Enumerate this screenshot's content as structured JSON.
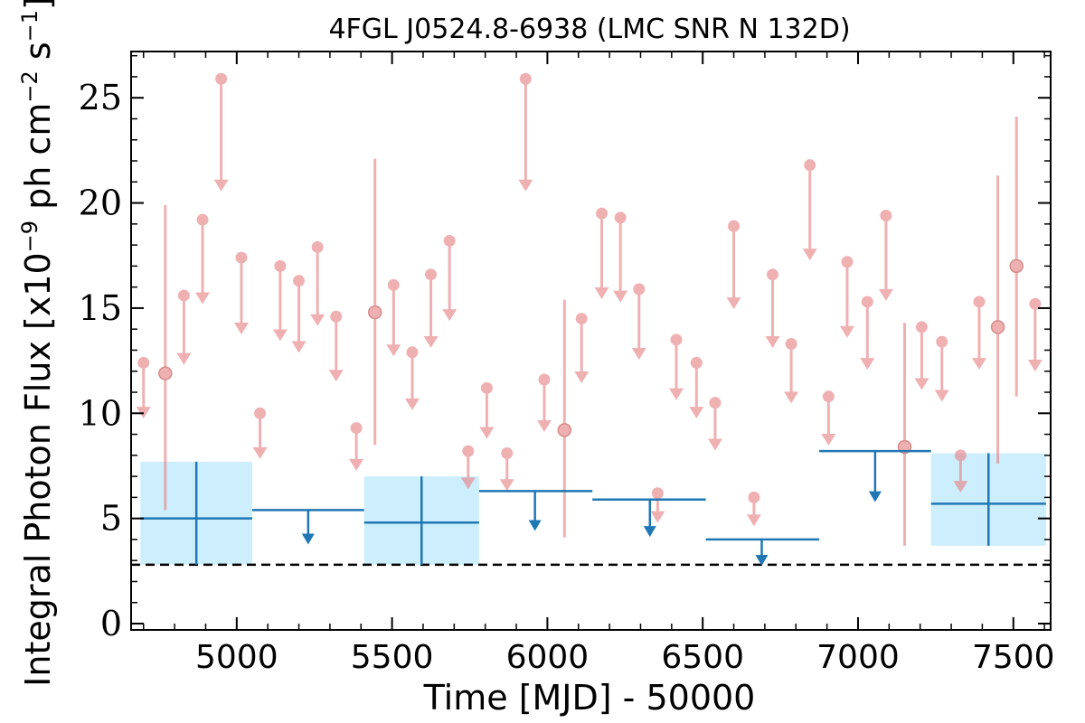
{
  "chart_data": {
    "type": "scatter",
    "title": "4FGL J0524.8-6938 (LMC SNR N 132D)",
    "xlabel": "Time [MJD] - 50000",
    "ylabel_main": "Integral Photon Flux [x10",
    "ylabel_exp1": "−9",
    "ylabel_mid": " ph cm",
    "ylabel_exp2": "−2",
    "ylabel_mid2": " s",
    "ylabel_exp3": "−1",
    "ylabel_end": "]",
    "xlim": [
      4660,
      7620
    ],
    "ylim": [
      -0.3,
      27.2
    ],
    "xticks": [
      5000,
      5500,
      6000,
      6500,
      7000,
      7500
    ],
    "yticks": [
      0,
      5,
      10,
      15,
      20,
      25
    ],
    "baseline": 2.8,
    "colors": {
      "short_bins": "#e8868a",
      "long_bins": "#1f77b4",
      "long_band": "#cdeefc",
      "baseline": "#000000"
    },
    "short_bins_upper_limits": [
      {
        "x": 4700,
        "y": 12.4
      },
      {
        "x": 4830,
        "y": 15.6
      },
      {
        "x": 4890,
        "y": 19.2
      },
      {
        "x": 4950,
        "y": 25.9
      },
      {
        "x": 5015,
        "y": 17.4
      },
      {
        "x": 5075,
        "y": 10.0
      },
      {
        "x": 5140,
        "y": 17.0
      },
      {
        "x": 5200,
        "y": 16.3
      },
      {
        "x": 5260,
        "y": 17.9
      },
      {
        "x": 5320,
        "y": 14.6
      },
      {
        "x": 5385,
        "y": 9.3
      },
      {
        "x": 5505,
        "y": 16.1
      },
      {
        "x": 5565,
        "y": 12.9
      },
      {
        "x": 5625,
        "y": 16.6
      },
      {
        "x": 5685,
        "y": 18.2
      },
      {
        "x": 5745,
        "y": 8.2
      },
      {
        "x": 5805,
        "y": 11.2
      },
      {
        "x": 5870,
        "y": 8.1
      },
      {
        "x": 5930,
        "y": 25.9
      },
      {
        "x": 5990,
        "y": 11.6
      },
      {
        "x": 6110,
        "y": 14.5
      },
      {
        "x": 6175,
        "y": 19.5
      },
      {
        "x": 6235,
        "y": 19.3
      },
      {
        "x": 6295,
        "y": 15.9
      },
      {
        "x": 6355,
        "y": 6.2
      },
      {
        "x": 6415,
        "y": 13.5
      },
      {
        "x": 6480,
        "y": 12.4
      },
      {
        "x": 6540,
        "y": 10.5
      },
      {
        "x": 6600,
        "y": 18.9
      },
      {
        "x": 6665,
        "y": 6.0
      },
      {
        "x": 6725,
        "y": 16.6
      },
      {
        "x": 6785,
        "y": 13.3
      },
      {
        "x": 6845,
        "y": 21.8
      },
      {
        "x": 6905,
        "y": 10.8
      },
      {
        "x": 6965,
        "y": 17.2
      },
      {
        "x": 7030,
        "y": 15.3
      },
      {
        "x": 7090,
        "y": 19.4
      },
      {
        "x": 7205,
        "y": 14.1
      },
      {
        "x": 7270,
        "y": 13.4
      },
      {
        "x": 7330,
        "y": 8.0
      },
      {
        "x": 7390,
        "y": 15.3
      },
      {
        "x": 7570,
        "y": 15.2
      }
    ],
    "short_bins_detections": [
      {
        "x": 4770,
        "y": 11.9,
        "ylow": 5.4,
        "yhigh": 19.9
      },
      {
        "x": 5445,
        "y": 14.8,
        "ylow": 8.5,
        "yhigh": 22.1
      },
      {
        "x": 6055,
        "y": 9.2,
        "ylow": 4.1,
        "yhigh": 15.4
      },
      {
        "x": 7150,
        "y": 8.4,
        "ylow": 3.7,
        "yhigh": 14.3
      },
      {
        "x": 7450,
        "y": 14.1,
        "ylow": 7.6,
        "yhigh": 21.3
      },
      {
        "x": 7510,
        "y": 17.0,
        "ylow": 10.8,
        "yhigh": 24.1
      }
    ],
    "long_bins_detections": [
      {
        "x0": 4690,
        "x1": 5050,
        "x": 4870,
        "y": 5.0,
        "ylow": 2.8,
        "yhigh": 7.7
      },
      {
        "x0": 5410,
        "x1": 5780,
        "x": 5595,
        "y": 4.8,
        "ylow": 2.8,
        "yhigh": 7.0
      },
      {
        "x0": 7235,
        "x1": 7605,
        "x": 7420,
        "y": 5.7,
        "ylow": 3.7,
        "yhigh": 8.1
      }
    ],
    "long_bins_upper_limits": [
      {
        "x0": 5050,
        "x1": 5410,
        "x": 5230,
        "y": 5.4
      },
      {
        "x0": 5780,
        "x1": 6145,
        "x": 5960,
        "y": 6.3
      },
      {
        "x0": 6145,
        "x1": 6510,
        "x": 6330,
        "y": 5.9
      },
      {
        "x0": 6510,
        "x1": 6875,
        "x": 6690,
        "y": 4.0
      },
      {
        "x0": 6875,
        "x1": 7235,
        "x": 7055,
        "y": 8.2
      }
    ]
  }
}
